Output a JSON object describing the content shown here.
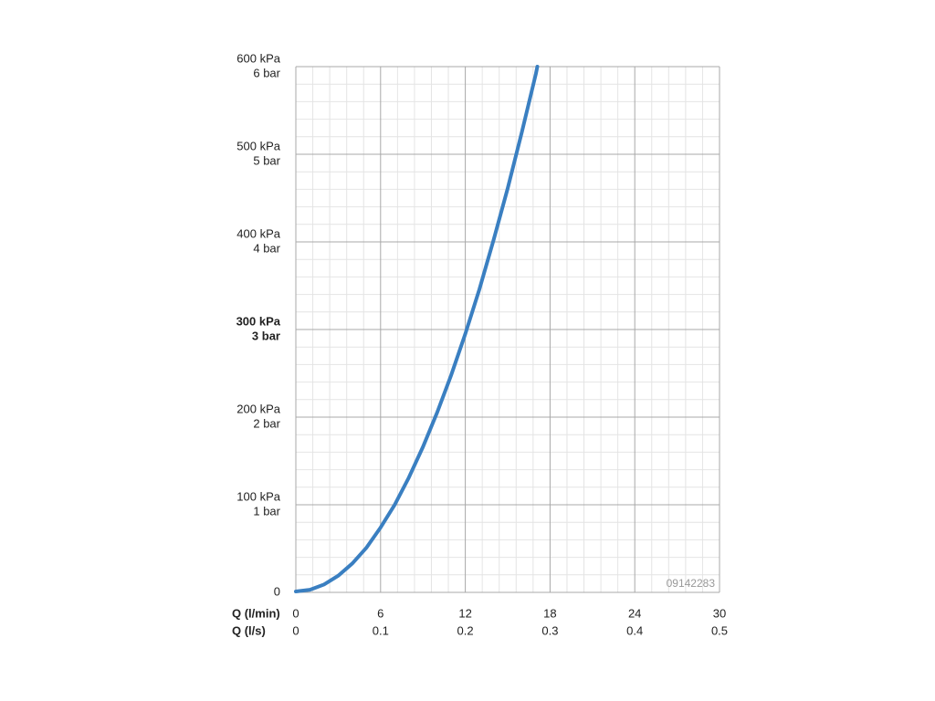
{
  "chart_data": {
    "type": "line",
    "xlabel": "Q (l/min)",
    "x2label": "Q (l/s)",
    "annotation": "09142283",
    "xlim": [
      0,
      30
    ],
    "xticks": [
      0,
      6,
      12,
      18,
      24,
      30
    ],
    "x2lim": [
      0,
      0.5
    ],
    "x2ticks": [
      0,
      0.1,
      0.2,
      0.3,
      0.4,
      0.5
    ],
    "ylim": [
      0,
      600
    ],
    "yticks": [
      0,
      {
        "value": 100,
        "label": "100 kPa"
      },
      {
        "value": 200,
        "label": "200 kPa"
      },
      {
        "value": 300,
        "label": "300 kPa"
      },
      {
        "value": 400,
        "label": "400 kPa"
      },
      {
        "value": 500,
        "label": "500 kPa"
      },
      {
        "value": 600,
        "label": "600 kPa"
      }
    ],
    "y2lim": [
      0,
      6
    ],
    "y2ticks": [
      {
        "value": 1,
        "label": "1 bar"
      },
      {
        "value": 2,
        "label": "2 bar"
      },
      {
        "value": 3,
        "label": "3 bar"
      },
      {
        "value": 4,
        "label": "4 bar"
      },
      {
        "value": 5,
        "label": "5 bar"
      },
      {
        "value": 6,
        "label": "6 bar"
      }
    ],
    "grid": true,
    "minor_divisions": 5,
    "series": [
      {
        "color": "#3a7fc1",
        "x": [
          0,
          1,
          2,
          3,
          4,
          5,
          6,
          7,
          8,
          9,
          10,
          11,
          12,
          13,
          14,
          15,
          16,
          17,
          17.1
        ],
        "values": [
          1,
          3,
          9,
          19,
          33,
          51,
          74,
          100,
          131,
          166,
          205,
          248,
          295,
          346,
          402,
          461,
          525,
          592,
          600
        ]
      }
    ]
  }
}
